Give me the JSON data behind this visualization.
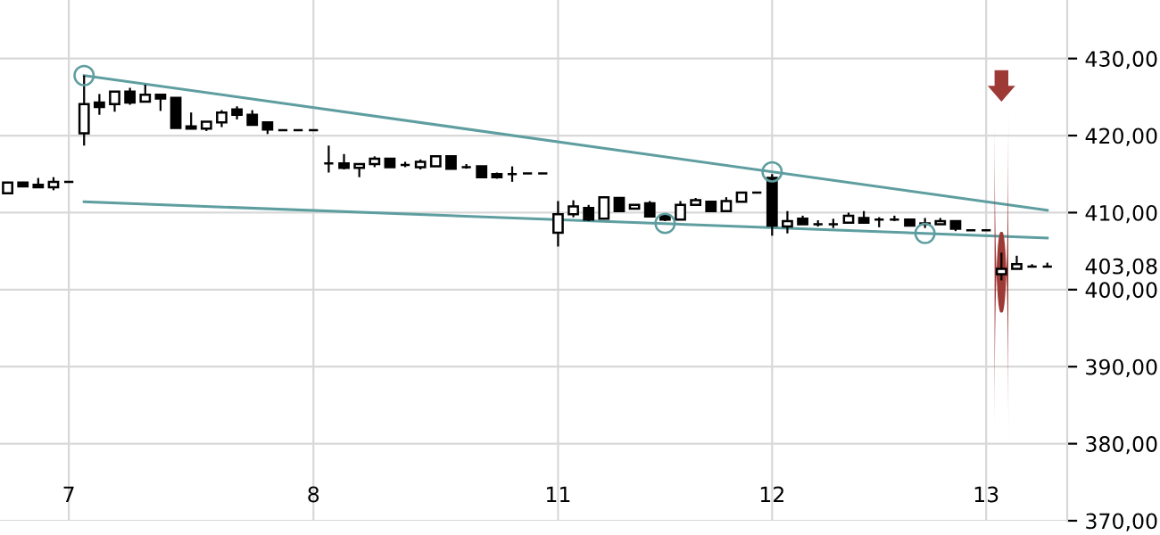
{
  "chart_data": {
    "type": "candlestick",
    "categories": [
      null,
      null,
      null,
      null,
      "7",
      null,
      null,
      null,
      null,
      null,
      null,
      null,
      null,
      null,
      null,
      null,
      null,
      null,
      null,
      null,
      "8",
      null,
      null,
      null,
      null,
      null,
      null,
      null,
      null,
      null,
      null,
      null,
      null,
      null,
      null,
      null,
      "11",
      null,
      null,
      null,
      null,
      null,
      null,
      null,
      null,
      null,
      null,
      null,
      null,
      null,
      "12",
      null,
      null,
      null,
      null,
      null,
      null,
      null,
      null,
      null,
      null,
      null,
      null,
      null,
      "13",
      null,
      null,
      null,
      null
    ],
    "ohlc": [
      [
        412.5,
        414.0,
        412.4,
        413.9
      ],
      [
        413.9,
        414.0,
        413.3,
        413.4
      ],
      [
        413.6,
        414.5,
        413.3,
        413.3
      ],
      [
        413.3,
        414.6,
        412.9,
        414.0
      ],
      [
        414.0,
        414.0,
        414.0,
        414.0
      ],
      [
        420.3,
        427.8,
        418.7,
        424.1
      ],
      [
        424.3,
        425.4,
        422.7,
        423.7
      ],
      [
        424.1,
        425.7,
        423.1,
        425.7
      ],
      [
        425.7,
        426.2,
        424.0,
        424.3
      ],
      [
        424.4,
        426.6,
        424.4,
        425.3
      ],
      [
        425.3,
        425.3,
        423.2,
        424.8
      ],
      [
        424.9,
        424.9,
        421.0,
        421.0
      ],
      [
        421.2,
        423.0,
        420.9,
        420.9
      ],
      [
        420.9,
        421.8,
        420.6,
        421.8
      ],
      [
        421.7,
        423.3,
        421.1,
        423.0
      ],
      [
        423.4,
        423.8,
        422.1,
        422.7
      ],
      [
        422.7,
        423.3,
        421.4,
        421.4
      ],
      [
        421.7,
        421.7,
        420.2,
        420.8
      ],
      [
        420.7,
        420.7,
        420.7,
        420.7
      ],
      [
        420.7,
        420.7,
        420.7,
        420.7
      ],
      [
        420.7,
        420.7,
        420.7,
        420.7
      ],
      [
        416.4,
        418.7,
        415.2,
        416.4
      ],
      [
        416.4,
        417.6,
        415.6,
        415.8
      ],
      [
        415.8,
        416.3,
        414.6,
        416.3
      ],
      [
        416.3,
        417.3,
        415.9,
        417.0
      ],
      [
        417.0,
        417.0,
        415.9,
        415.9
      ],
      [
        416.2,
        416.6,
        415.9,
        416.2
      ],
      [
        415.9,
        416.9,
        415.6,
        416.6
      ],
      [
        416.0,
        417.3,
        416.0,
        417.3
      ],
      [
        417.3,
        417.3,
        415.7,
        415.7
      ],
      [
        415.9,
        416.3,
        415.7,
        415.9
      ],
      [
        416.0,
        416.0,
        414.6,
        414.6
      ],
      [
        415.0,
        415.2,
        414.4,
        414.6
      ],
      [
        415.0,
        416.0,
        414.0,
        415.0
      ],
      [
        415.1,
        415.1,
        415.1,
        415.1
      ],
      [
        415.1,
        415.1,
        415.1,
        415.1
      ],
      [
        407.4,
        411.5,
        405.6,
        409.8
      ],
      [
        409.8,
        411.6,
        409.4,
        410.8
      ],
      [
        410.6,
        411.0,
        408.9,
        409.1
      ],
      [
        409.2,
        412.0,
        409.2,
        412.0
      ],
      [
        411.9,
        411.9,
        410.2,
        410.2
      ],
      [
        410.5,
        411.0,
        410.5,
        411.0
      ],
      [
        411.2,
        411.5,
        409.5,
        409.5
      ],
      [
        409.6,
        409.6,
        408.9,
        409.1
      ],
      [
        409.1,
        411.5,
        409.1,
        411.0
      ],
      [
        411.0,
        411.9,
        411.0,
        411.6
      ],
      [
        411.4,
        411.4,
        410.2,
        410.2
      ],
      [
        410.2,
        412.0,
        410.2,
        411.5
      ],
      [
        411.4,
        412.6,
        411.4,
        412.6
      ],
      [
        412.6,
        412.6,
        412.6,
        412.6
      ],
      [
        414.5,
        415.0,
        407.0,
        408.3
      ],
      [
        408.2,
        410.2,
        407.3,
        408.9
      ],
      [
        409.2,
        409.6,
        408.5,
        408.5
      ],
      [
        408.5,
        409.0,
        408.2,
        408.5
      ],
      [
        408.5,
        409.2,
        408.0,
        408.5
      ],
      [
        408.7,
        410.0,
        408.7,
        409.6
      ],
      [
        409.3,
        410.2,
        408.7,
        408.7
      ],
      [
        409.1,
        409.4,
        408.1,
        409.1
      ],
      [
        409.1,
        409.6,
        408.9,
        409.1
      ],
      [
        409.1,
        409.1,
        408.3,
        408.3
      ],
      [
        408.6,
        409.3,
        408.0,
        408.5
      ],
      [
        408.5,
        409.3,
        408.5,
        408.9
      ],
      [
        408.9,
        408.9,
        407.6,
        407.9
      ],
      [
        407.7,
        407.7,
        407.7,
        407.7
      ],
      [
        407.7,
        407.7,
        407.7,
        407.7
      ],
      [
        402.0,
        404.8,
        401.2,
        402.7
      ],
      [
        402.7,
        404.4,
        402.7,
        403.3
      ],
      [
        403.0,
        403.3,
        402.9,
        403.0
      ],
      [
        403.0,
        403.5,
        403.0,
        403.0
      ]
    ],
    "series": [
      {
        "type": "line",
        "values": [
          null,
          null,
          null,
          null,
          null,
          427.8,
          null,
          null,
          null,
          null,
          null,
          null,
          null,
          null,
          null,
          null,
          null,
          null,
          null,
          null,
          null,
          null,
          null,
          null,
          null,
          null,
          null,
          null,
          null,
          null,
          null,
          null,
          null,
          null,
          null,
          null,
          null,
          null,
          null,
          null,
          null,
          null,
          null,
          null,
          null,
          null,
          null,
          null,
          null,
          null,
          null,
          null,
          null,
          null,
          null,
          null,
          null,
          null,
          null,
          null,
          null,
          null,
          null,
          null,
          null,
          null,
          null,
          null,
          410.3
        ],
        "color": "#5f9ea0"
      },
      {
        "type": "line",
        "values": [
          null,
          null,
          null,
          null,
          null,
          411.4,
          null,
          null,
          null,
          null,
          null,
          null,
          null,
          null,
          null,
          null,
          null,
          null,
          null,
          null,
          null,
          null,
          null,
          null,
          null,
          null,
          null,
          null,
          null,
          null,
          null,
          null,
          null,
          null,
          null,
          null,
          null,
          null,
          null,
          null,
          null,
          null,
          null,
          null,
          null,
          null,
          null,
          null,
          null,
          null,
          null,
          null,
          null,
          null,
          null,
          null,
          null,
          null,
          null,
          null,
          null,
          null,
          null,
          null,
          null,
          null,
          null,
          null,
          406.7
        ],
        "color": "#5f9ea0"
      },
      {
        "type": "scatter",
        "values": [
          null,
          null,
          null,
          null,
          null,
          427.8,
          null,
          null,
          null,
          null,
          null,
          null,
          null,
          null,
          null,
          null,
          null,
          null,
          null,
          null,
          null,
          null,
          null,
          null,
          null,
          null,
          null,
          null,
          null,
          null,
          null,
          null,
          null,
          null,
          null,
          null,
          null,
          null,
          null,
          null,
          null,
          null,
          null,
          408.6,
          null,
          null,
          null,
          null,
          null,
          null,
          415.3,
          null,
          null,
          null,
          null,
          null,
          null,
          null,
          null,
          null,
          407.3,
          null,
          null,
          null,
          null,
          null,
          null,
          null,
          null
        ],
        "color": "#5f9ea0",
        "marker": "circle"
      }
    ],
    "ylim": [
      370,
      437.6
    ],
    "yticks": [
      {
        "value": 370,
        "label": "370,00"
      },
      {
        "value": 380,
        "label": "380,00"
      },
      {
        "value": 390,
        "label": "390,00"
      },
      {
        "value": 400,
        "label": "400,00"
      },
      {
        "value": 403.08,
        "label": "403,08"
      },
      {
        "value": 410,
        "label": "410,00"
      },
      {
        "value": 420,
        "label": "420,00"
      },
      {
        "value": 430,
        "label": "430,00"
      }
    ],
    "grid": true
  }
}
